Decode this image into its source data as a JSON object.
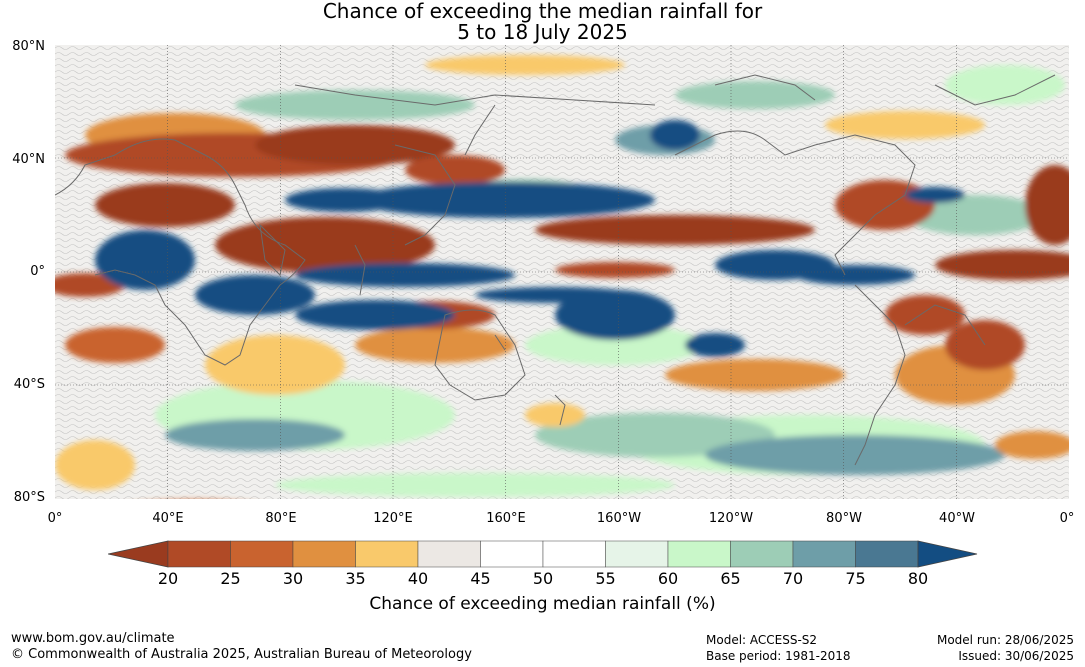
{
  "title_line1": "Chance of exceeding the median rainfall for",
  "title_line2": "5 to 18 July 2025",
  "lat_labels": [
    "80°N",
    "40°N",
    "0°",
    "40°S",
    "80°S"
  ],
  "lon_labels": [
    "0°",
    "40°E",
    "80°E",
    "120°E",
    "160°E",
    "160°W",
    "120°W",
    "80°W",
    "40°W",
    "0°"
  ],
  "colorbar": {
    "ticks": [
      "20",
      "25",
      "30",
      "35",
      "40",
      "45",
      "50",
      "55",
      "60",
      "65",
      "70",
      "75",
      "80"
    ],
    "title": "Chance of exceeding median rainfall (%)",
    "colors": [
      "#9a3b1f",
      "#b04a26",
      "#c9632f",
      "#e09040",
      "#f9c96b",
      "#ece8e4",
      "#ffffff",
      "#ffffff",
      "#e6f4e8",
      "#c9f7c9",
      "#9dcdb6",
      "#6e9ea8",
      "#4a7892",
      "#134d82"
    ]
  },
  "footer": {
    "website": "www.bom.gov.au/climate",
    "copyright": "© Commonwealth of Australia 2025, Australian Bureau of Meteorology",
    "model": "Model: ACCESS-S2",
    "base_period": "Base period: 1981-2018",
    "model_run": "Model run: 28/06/2025",
    "issued": "Issued: 30/06/2025"
  }
}
